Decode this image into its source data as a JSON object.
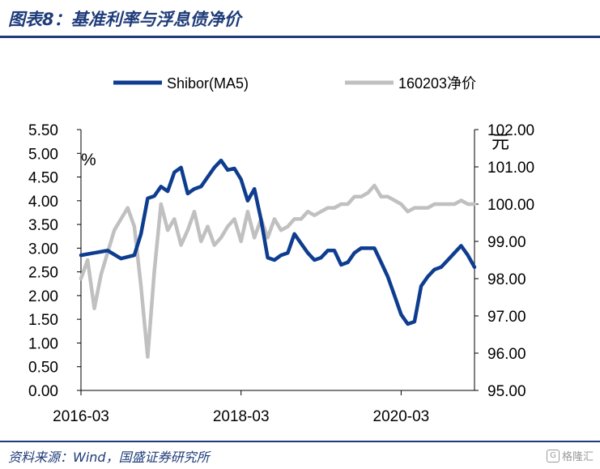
{
  "figure": {
    "title": "图表8：基准利率与浮息债净价",
    "source": "资料来源：Wind，国盛证券研究所",
    "watermark": "格隆汇"
  },
  "colors": {
    "brand": "#1f3c7a",
    "shibor_line": "#0e3d8f",
    "bond_line": "#c0c0c0",
    "axis": "#000000"
  },
  "chart_data": {
    "type": "line",
    "left_unit": "%",
    "right_unit": "元",
    "x_ticks": [
      "2016-03",
      "2018-03",
      "2020-03"
    ],
    "y_left_ticks": [
      "0.00",
      "0.50",
      "1.00",
      "1.50",
      "2.00",
      "2.50",
      "3.00",
      "3.50",
      "4.00",
      "4.50",
      "5.00",
      "5.50"
    ],
    "y_right_ticks": [
      "95.00",
      "96.00",
      "97.00",
      "98.00",
      "99.00",
      "100.00",
      "101.00",
      "102.00"
    ],
    "ylim_left": [
      0,
      5.5
    ],
    "ylim_right": [
      95,
      102
    ],
    "xlim": [
      "2016-03",
      "2021-02"
    ],
    "grid": false,
    "legend_position": "top",
    "series": [
      {
        "name": "Shibor(MA5)",
        "axis": "left",
        "points": [
          [
            "2016-03",
            2.85
          ],
          [
            "2016-05",
            2.9
          ],
          [
            "2016-07",
            2.95
          ],
          [
            "2016-09",
            2.78
          ],
          [
            "2016-11",
            2.85
          ],
          [
            "2016-12",
            3.3
          ],
          [
            "2017-01",
            4.05
          ],
          [
            "2017-02",
            4.1
          ],
          [
            "2017-03",
            4.3
          ],
          [
            "2017-04",
            4.2
          ],
          [
            "2017-05",
            4.6
          ],
          [
            "2017-06",
            4.7
          ],
          [
            "2017-07",
            4.15
          ],
          [
            "2017-08",
            4.25
          ],
          [
            "2017-09",
            4.3
          ],
          [
            "2017-10",
            4.5
          ],
          [
            "2017-11",
            4.7
          ],
          [
            "2017-12",
            4.85
          ],
          [
            "2018-01",
            4.65
          ],
          [
            "2018-02",
            4.68
          ],
          [
            "2018-03",
            4.45
          ],
          [
            "2018-04",
            4.0
          ],
          [
            "2018-05",
            4.25
          ],
          [
            "2018-06",
            3.6
          ],
          [
            "2018-07",
            2.8
          ],
          [
            "2018-08",
            2.75
          ],
          [
            "2018-09",
            2.85
          ],
          [
            "2018-10",
            2.9
          ],
          [
            "2018-11",
            3.3
          ],
          [
            "2018-12",
            3.1
          ],
          [
            "2019-01",
            2.9
          ],
          [
            "2019-02",
            2.75
          ],
          [
            "2019-03",
            2.8
          ],
          [
            "2019-04",
            2.95
          ],
          [
            "2019-05",
            2.95
          ],
          [
            "2019-06",
            2.65
          ],
          [
            "2019-07",
            2.7
          ],
          [
            "2019-08",
            2.9
          ],
          [
            "2019-09",
            3.0
          ],
          [
            "2019-10",
            3.0
          ],
          [
            "2019-11",
            3.0
          ],
          [
            "2019-12",
            2.7
          ],
          [
            "2020-01",
            2.4
          ],
          [
            "2020-02",
            2.0
          ],
          [
            "2020-03",
            1.6
          ],
          [
            "2020-04",
            1.4
          ],
          [
            "2020-05",
            1.45
          ],
          [
            "2020-06",
            2.2
          ],
          [
            "2020-07",
            2.4
          ],
          [
            "2020-08",
            2.55
          ],
          [
            "2020-09",
            2.6
          ],
          [
            "2020-10",
            2.75
          ],
          [
            "2020-11",
            2.9
          ],
          [
            "2020-12",
            3.05
          ],
          [
            "2021-01",
            2.85
          ],
          [
            "2021-02",
            2.6
          ]
        ]
      },
      {
        "name": "160203净价",
        "axis": "right",
        "points": [
          [
            "2016-03",
            98.0
          ],
          [
            "2016-04",
            98.5
          ],
          [
            "2016-05",
            97.2
          ],
          [
            "2016-06",
            98.1
          ],
          [
            "2016-07",
            98.7
          ],
          [
            "2016-08",
            99.3
          ],
          [
            "2016-09",
            99.6
          ],
          [
            "2016-10",
            99.9
          ],
          [
            "2016-11",
            99.4
          ],
          [
            "2016-12",
            97.8
          ],
          [
            "2017-01",
            95.9
          ],
          [
            "2017-02",
            98.2
          ],
          [
            "2017-03",
            100.0
          ],
          [
            "2017-04",
            99.3
          ],
          [
            "2017-05",
            99.6
          ],
          [
            "2017-06",
            98.9
          ],
          [
            "2017-07",
            99.3
          ],
          [
            "2017-08",
            99.8
          ],
          [
            "2017-09",
            99.0
          ],
          [
            "2017-10",
            99.4
          ],
          [
            "2017-11",
            98.9
          ],
          [
            "2017-12",
            99.1
          ],
          [
            "2018-01",
            99.4
          ],
          [
            "2018-02",
            99.6
          ],
          [
            "2018-03",
            99.0
          ],
          [
            "2018-04",
            99.8
          ],
          [
            "2018-05",
            99.1
          ],
          [
            "2018-06",
            99.6
          ],
          [
            "2018-07",
            99.1
          ],
          [
            "2018-08",
            99.6
          ],
          [
            "2018-09",
            99.3
          ],
          [
            "2018-10",
            99.4
          ],
          [
            "2018-11",
            99.6
          ],
          [
            "2018-12",
            99.6
          ],
          [
            "2019-01",
            99.8
          ],
          [
            "2019-02",
            99.7
          ],
          [
            "2019-03",
            99.8
          ],
          [
            "2019-04",
            99.9
          ],
          [
            "2019-05",
            99.9
          ],
          [
            "2019-06",
            100.0
          ],
          [
            "2019-07",
            100.0
          ],
          [
            "2019-08",
            100.2
          ],
          [
            "2019-09",
            100.2
          ],
          [
            "2019-10",
            100.3
          ],
          [
            "2019-11",
            100.5
          ],
          [
            "2019-12",
            100.2
          ],
          [
            "2020-01",
            100.2
          ],
          [
            "2020-02",
            100.1
          ],
          [
            "2020-03",
            100.0
          ],
          [
            "2020-04",
            99.8
          ],
          [
            "2020-05",
            99.9
          ],
          [
            "2020-06",
            99.9
          ],
          [
            "2020-07",
            99.9
          ],
          [
            "2020-08",
            100.0
          ],
          [
            "2020-09",
            100.0
          ],
          [
            "2020-10",
            100.0
          ],
          [
            "2020-11",
            100.0
          ],
          [
            "2020-12",
            100.1
          ],
          [
            "2021-01",
            100.0
          ],
          [
            "2021-02",
            100.0
          ]
        ]
      }
    ]
  }
}
